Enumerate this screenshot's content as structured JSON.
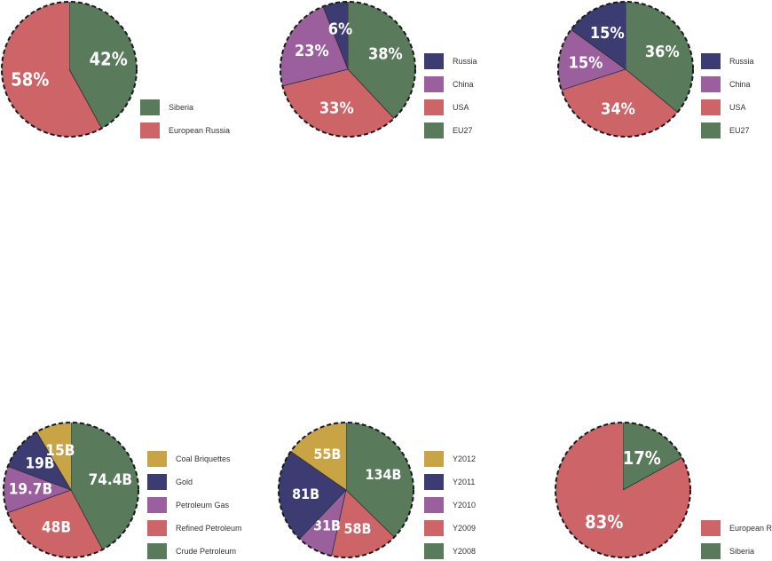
{
  "colors": {
    "siberia": "#5a7a5c",
    "european_russia": "#cd6467",
    "russia": "#3c3c73",
    "china": "#9c5f9e",
    "usa": "#cd6467",
    "eu27": "#5a7a5c",
    "gold_coal": "#c9a444"
  },
  "chart_data": [
    {
      "type": "pie",
      "slices": [
        {
          "label": "Siberia",
          "value": 42,
          "display": "42%",
          "color": "#5a7a5c"
        },
        {
          "label": "European Russia",
          "value": 58,
          "display": "58%",
          "color": "#cd6467"
        }
      ],
      "legend": [
        {
          "label": "Siberia",
          "color": "#5a7a5c"
        },
        {
          "label": "European Russia",
          "color": "#cd6467"
        }
      ]
    },
    {
      "type": "pie",
      "slices": [
        {
          "label": "EU27",
          "value": 38,
          "display": "38%",
          "color": "#5a7a5c"
        },
        {
          "label": "USA",
          "value": 33,
          "display": "33%",
          "color": "#cd6467"
        },
        {
          "label": "China",
          "value": 23,
          "display": "23%",
          "color": "#9c5f9e"
        },
        {
          "label": "Russia",
          "value": 6,
          "display": "6%",
          "color": "#3c3c73"
        }
      ],
      "legend": [
        {
          "label": "Russia",
          "color": "#3c3c73"
        },
        {
          "label": "China",
          "color": "#9c5f9e"
        },
        {
          "label": "USA",
          "color": "#cd6467"
        },
        {
          "label": "EU27",
          "color": "#5a7a5c"
        }
      ]
    },
    {
      "type": "pie",
      "slices": [
        {
          "label": "EU27",
          "value": 36,
          "display": "36%",
          "color": "#5a7a5c"
        },
        {
          "label": "USA",
          "value": 34,
          "display": "34%",
          "color": "#cd6467"
        },
        {
          "label": "China",
          "value": 15,
          "display": "15%",
          "color": "#9c5f9e"
        },
        {
          "label": "Russia",
          "value": 15,
          "display": "15%",
          "color": "#3c3c73"
        }
      ],
      "legend": [
        {
          "label": "Russia",
          "color": "#3c3c73"
        },
        {
          "label": "China",
          "color": "#9c5f9e"
        },
        {
          "label": "USA",
          "color": "#cd6467"
        },
        {
          "label": "EU27",
          "color": "#5a7a5c"
        }
      ]
    },
    {
      "type": "pie",
      "slices": [
        {
          "label": "Crude Petroleum",
          "value": 74.4,
          "display": "74.4B",
          "color": "#5a7a5c"
        },
        {
          "label": "Refined Petroleum",
          "value": 48,
          "display": "48B",
          "color": "#cd6467"
        },
        {
          "label": "Petroleum Gas",
          "value": 19.7,
          "display": "19.7B",
          "color": "#9c5f9e"
        },
        {
          "label": "Gold",
          "value": 19,
          "display": "19B",
          "color": "#3c3c73"
        },
        {
          "label": "Coal Briquettes",
          "value": 15,
          "display": "15B",
          "color": "#c9a444"
        }
      ],
      "legend": [
        {
          "label": "Coal Briquettes",
          "color": "#c9a444"
        },
        {
          "label": "Gold",
          "color": "#3c3c73"
        },
        {
          "label": "Petroleum Gas",
          "color": "#9c5f9e"
        },
        {
          "label": "Refined Petroleum",
          "color": "#cd6467"
        },
        {
          "label": "Crude Petroleum",
          "color": "#5a7a5c"
        }
      ]
    },
    {
      "type": "pie",
      "slices": [
        {
          "label": "Y2008",
          "value": 134,
          "display": "134B",
          "color": "#5a7a5c"
        },
        {
          "label": "Y2009",
          "value": 58,
          "display": "58B",
          "color": "#cd6467"
        },
        {
          "label": "Y2010",
          "value": 31,
          "display": "31B",
          "color": "#9c5f9e"
        },
        {
          "label": "Y2011",
          "value": 81,
          "display": "81B",
          "color": "#3c3c73"
        },
        {
          "label": "Y2012",
          "value": 55,
          "display": "55B",
          "color": "#c9a444"
        }
      ],
      "legend": [
        {
          "label": "Y2012",
          "color": "#c9a444"
        },
        {
          "label": "Y2011",
          "color": "#3c3c73"
        },
        {
          "label": "Y2010",
          "color": "#9c5f9e"
        },
        {
          "label": "Y2009",
          "color": "#cd6467"
        },
        {
          "label": "Y2008",
          "color": "#5a7a5c"
        }
      ]
    },
    {
      "type": "pie",
      "slices": [
        {
          "label": "Siberia",
          "value": 17,
          "display": "17%",
          "color": "#5a7a5c"
        },
        {
          "label": "European Russia",
          "value": 83,
          "display": "83%",
          "color": "#cd6467"
        }
      ],
      "legend": [
        {
          "label": "European Russia",
          "color": "#cd6467"
        },
        {
          "label": "Siberia",
          "color": "#5a7a5c"
        }
      ]
    }
  ]
}
